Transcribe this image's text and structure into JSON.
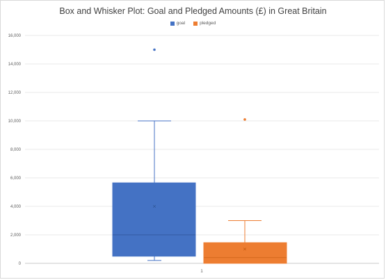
{
  "chart_data": {
    "type": "box",
    "title": "Box and Whisker Plot: Goal and Pledged Amounts (£) in Great Britain",
    "categories": [
      "1"
    ],
    "ylim": [
      0,
      16000
    ],
    "yticks": [
      0,
      2000,
      4000,
      6000,
      8000,
      10000,
      12000,
      14000,
      16000
    ],
    "ytick_labels": [
      "0",
      "2,000",
      "4,000",
      "6,000",
      "8,000",
      "10,000",
      "12,000",
      "14,000",
      "16,000"
    ],
    "grid": true,
    "legend_position": "top-center",
    "series": [
      {
        "name": "goal",
        "color": "#4472c4",
        "min": 200,
        "q1": 500,
        "median": 2000,
        "q3": 5650,
        "max": 10000,
        "mean": 4000,
        "outliers": [
          15000
        ]
      },
      {
        "name": "pledged",
        "color": "#ed7d31",
        "min": 0,
        "q1": 0,
        "median": 400,
        "q3": 1450,
        "max": 3000,
        "mean": 1000,
        "outliers": [
          10100
        ]
      }
    ]
  }
}
